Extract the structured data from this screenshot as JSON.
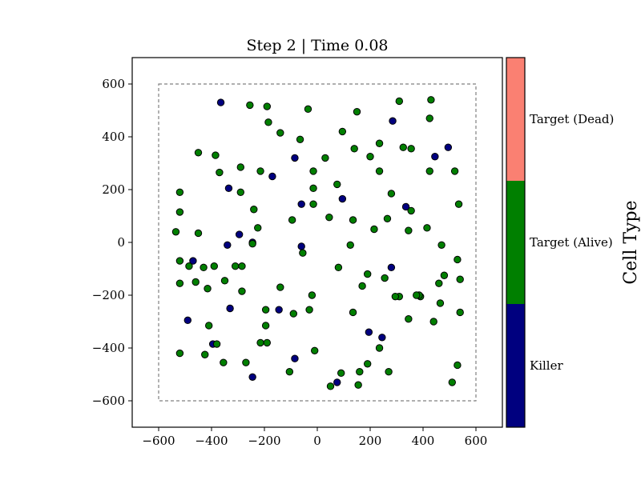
{
  "chart_data": {
    "type": "scatter",
    "title": "Step 2  |  Time 0.08",
    "xlim": [
      -700,
      700
    ],
    "ylim": [
      -700,
      700
    ],
    "xticks": [
      -600,
      -400,
      -200,
      0,
      200,
      400,
      600
    ],
    "yticks": [
      -600,
      -400,
      -200,
      0,
      200,
      400,
      600
    ],
    "xtick_labels": [
      "−600",
      "−400",
      "−200",
      "0",
      "200",
      "400",
      "600"
    ],
    "ytick_labels": [
      "−600",
      "−400",
      "−200",
      "0",
      "200",
      "400",
      "600"
    ],
    "grid": false,
    "boundary_box": {
      "x": [
        -600,
        600
      ],
      "y": [
        -600,
        600
      ],
      "style": "dashed",
      "color": "#808080"
    },
    "colorbar": {
      "title": "Cell Type",
      "categories": [
        {
          "label": "Killer",
          "color": "#00007f"
        },
        {
          "label": "Target (Alive)",
          "color": "#007f00"
        },
        {
          "label": "Target (Dead)",
          "color": "#fa8072"
        }
      ]
    },
    "series": [
      {
        "category": "Killer",
        "color": "#00007f",
        "x": [
          -365,
          -335,
          -170,
          -85,
          -60,
          95,
          285,
          495,
          445,
          -340,
          -295,
          -245,
          335,
          -60,
          280,
          -470,
          -395,
          -145,
          195,
          245,
          -330,
          -490,
          -245,
          -85,
          75
        ],
        "y": [
          530,
          205,
          250,
          320,
          145,
          165,
          460,
          360,
          325,
          -10,
          30,
          0,
          135,
          -15,
          -95,
          -70,
          -385,
          -255,
          -340,
          -360,
          -250,
          -295,
          -510,
          -440,
          -530
        ]
      },
      {
        "category": "Target (Alive)",
        "color": "#007f00",
        "x": [
          -255,
          -190,
          -185,
          -35,
          150,
          310,
          425,
          430,
          -140,
          -65,
          95,
          235,
          355,
          -245,
          -450,
          -385,
          -370,
          -290,
          -215,
          -15,
          30,
          140,
          200,
          235,
          325,
          425,
          520,
          -520,
          -290,
          -240,
          -520,
          -225,
          -15,
          75,
          280,
          355,
          -535,
          -450,
          -95,
          -55,
          45,
          135,
          215,
          265,
          345,
          415,
          535,
          -15,
          125,
          470,
          -520,
          -310,
          -485,
          -430,
          -390,
          -285,
          -520,
          -460,
          -415,
          -350,
          -285,
          -140,
          -195,
          -90,
          -20,
          190,
          255,
          390,
          480,
          170,
          385,
          460,
          540,
          80,
          310,
          440,
          540,
          -410,
          -380,
          -195,
          -30,
          135,
          295,
          345,
          375,
          465,
          530,
          -425,
          -215,
          -190,
          -520,
          -355,
          -270,
          -10,
          190,
          235,
          270,
          160,
          -105,
          90,
          510,
          530,
          50,
          155
        ],
        "y": [
          520,
          515,
          455,
          505,
          495,
          535,
          470,
          540,
          415,
          390,
          420,
          375,
          355,
          -5,
          340,
          330,
          265,
          285,
          270,
          270,
          320,
          355,
          325,
          270,
          360,
          270,
          270,
          190,
          190,
          125,
          115,
          55,
          205,
          220,
          185,
          120,
          40,
          35,
          85,
          -40,
          95,
          85,
          50,
          90,
          45,
          55,
          145,
          145,
          -10,
          -10,
          -70,
          -90,
          -90,
          -95,
          -90,
          -185,
          -155,
          -150,
          -175,
          -145,
          -90,
          -170,
          -255,
          -270,
          -200,
          -120,
          -135,
          -205,
          -125,
          -165,
          -200,
          -155,
          -140,
          -95,
          -205,
          -300,
          -265,
          -315,
          -385,
          -315,
          -255,
          -265,
          -205,
          -290,
          -200,
          -230,
          -65,
          -425,
          -380,
          -380,
          -420,
          -455,
          -455,
          -410,
          -460,
          -400,
          -490,
          -490,
          -490,
          -495,
          -530,
          -465,
          -545,
          -540
        ]
      },
      {
        "category": "Target (Dead)",
        "color": "#fa8072",
        "x": [],
        "y": []
      }
    ]
  }
}
